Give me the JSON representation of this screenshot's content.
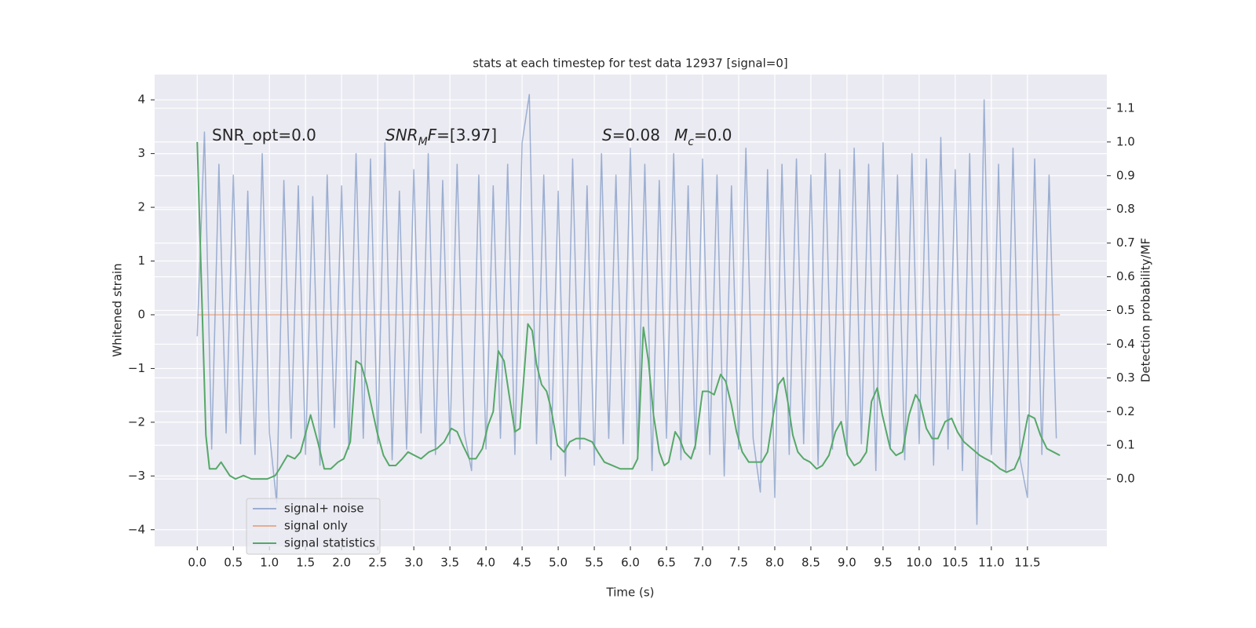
{
  "chart_data": {
    "type": "line",
    "title": "stats at each timestep for test data 12937 [signal=0]",
    "xlabel": "Time (s)",
    "ylabel": "Whitened strain",
    "y2label": "Detection probability/MF",
    "xlim": [
      -0.59,
      12.6
    ],
    "ylim": [
      -4.31,
      4.47
    ],
    "y2lim": [
      -0.2,
      1.2
    ],
    "xticks": [
      {
        "value": 0,
        "label": "0.0"
      },
      0.5,
      {
        "value": 1,
        "label": "1.0"
      },
      1.5,
      {
        "value": 2,
        "label": "2.0"
      },
      2.5,
      {
        "value": 3,
        "label": "3.0"
      },
      3.5,
      {
        "value": 4,
        "label": "4.0"
      },
      4.5,
      {
        "value": 5,
        "label": "5.0"
      },
      5.5,
      {
        "value": 6,
        "label": "6.0"
      },
      6.5,
      {
        "value": 7,
        "label": "7.0"
      },
      7.5,
      {
        "value": 8,
        "label": "8.0"
      },
      8.5,
      {
        "value": 9,
        "label": "9.0"
      },
      9.5,
      {
        "value": 10,
        "label": "10.0"
      },
      10.5,
      {
        "value": 11,
        "label": "11.0"
      },
      11.5
    ],
    "yticks": [
      {
        "value": -4,
        "label": "−4"
      },
      {
        "value": -3,
        "label": "−3"
      },
      {
        "value": -2,
        "label": "−2"
      },
      {
        "value": -1,
        "label": "−1"
      },
      0,
      1,
      2,
      3,
      4
    ],
    "y2ticks": [
      {
        "value": 0,
        "label": "0.0"
      },
      0.1,
      0.2,
      0.3,
      0.4,
      0.5,
      0.6,
      0.7,
      0.8,
      0.9,
      {
        "value": 1,
        "label": "1.0"
      },
      1.1
    ],
    "grid": true,
    "legend": "lower left",
    "annotations": [
      {
        "parts": [
          {
            "text": "SNR_opt=0.0"
          }
        ]
      },
      {
        "parts": [
          {
            "text": "SNR",
            "italic": true
          },
          {
            "text": "M",
            "italic": true,
            "sub": true
          },
          {
            "text": "F",
            "italic": true
          },
          {
            "text": "=[3.97]"
          }
        ]
      },
      {
        "parts": [
          {
            "text": "S",
            "italic": true
          },
          {
            "text": "=0.08"
          }
        ]
      },
      {
        "parts": [
          {
            "text": "M",
            "italic": true
          },
          {
            "text": "c",
            "italic": true,
            "sub": true
          },
          {
            "text": "=0.0"
          }
        ]
      }
    ],
    "series": [
      {
        "name": "signal+ noise",
        "color": "#4c72b0",
        "opacity": 0.5,
        "x": [
          0.0,
          0.1,
          0.2,
          0.3,
          0.4,
          0.5,
          0.6,
          0.7,
          0.8,
          0.9,
          1.0,
          1.1,
          1.2,
          1.3,
          1.4,
          1.5,
          1.6,
          1.7,
          1.8,
          1.9,
          2.0,
          2.1,
          2.2,
          2.3,
          2.4,
          2.5,
          2.6,
          2.7,
          2.8,
          2.9,
          3.0,
          3.1,
          3.2,
          3.3,
          3.4,
          3.5,
          3.6,
          3.7,
          3.8,
          3.9,
          4.0,
          4.1,
          4.2,
          4.3,
          4.4,
          4.5,
          4.6,
          4.7,
          4.8,
          4.9,
          5.0,
          5.1,
          5.2,
          5.3,
          5.4,
          5.5,
          5.6,
          5.7,
          5.8,
          5.9,
          6.0,
          6.1,
          6.2,
          6.3,
          6.4,
          6.5,
          6.6,
          6.7,
          6.8,
          6.9,
          7.0,
          7.1,
          7.2,
          7.3,
          7.4,
          7.5,
          7.6,
          7.7,
          7.8,
          7.9,
          8.0,
          8.1,
          8.2,
          8.3,
          8.4,
          8.5,
          8.6,
          8.7,
          8.8,
          8.9,
          9.0,
          9.1,
          9.2,
          9.3,
          9.4,
          9.5,
          9.6,
          9.7,
          9.8,
          9.9,
          10.0,
          10.1,
          10.2,
          10.3,
          10.4,
          10.5,
          10.6,
          10.7,
          10.8,
          10.9,
          11.0,
          11.1,
          11.2,
          11.3,
          11.4,
          11.5,
          11.6,
          11.7,
          11.8,
          11.9
        ],
        "values": [
          -0.4,
          3.4,
          -2.5,
          2.8,
          -2.2,
          2.6,
          -2.4,
          2.3,
          -2.6,
          3.0,
          -2.2,
          -3.5,
          2.5,
          -2.3,
          2.4,
          -2.6,
          2.2,
          -2.8,
          2.6,
          -2.1,
          2.4,
          -2.5,
          3.0,
          -2.3,
          2.9,
          -2.4,
          3.2,
          -2.7,
          2.3,
          -2.5,
          2.7,
          -2.2,
          3.0,
          -2.6,
          2.5,
          -2.4,
          2.8,
          -2.2,
          -2.9,
          2.6,
          -2.5,
          2.4,
          -2.3,
          2.8,
          -2.6,
          3.2,
          4.1,
          -2.4,
          2.6,
          -2.7,
          2.3,
          -3.0,
          2.9,
          -2.5,
          2.4,
          -2.8,
          3.0,
          -2.3,
          2.6,
          -2.4,
          3.1,
          -2.6,
          2.8,
          -2.9,
          2.5,
          -2.3,
          3.0,
          -2.7,
          2.4,
          -2.5,
          2.9,
          -2.6,
          2.6,
          -3.0,
          2.4,
          -2.5,
          3.1,
          -2.3,
          -3.3,
          2.7,
          -3.4,
          2.8,
          -2.6,
          2.9,
          -2.4,
          2.6,
          -2.8,
          3.0,
          -2.5,
          2.7,
          -2.6,
          3.1,
          -2.4,
          2.8,
          -2.9,
          3.2,
          -2.5,
          2.6,
          -2.7,
          3.0,
          -2.4,
          2.9,
          -2.8,
          3.3,
          -2.5,
          2.7,
          -2.9,
          3.0,
          -3.9,
          4.0,
          -2.6,
          2.8,
          -2.9,
          3.1,
          -2.7,
          -3.4,
          2.9,
          -2.6,
          2.6,
          -2.3
        ]
      },
      {
        "name": "signal only",
        "color": "#dd8452",
        "opacity": 0.6,
        "x": [
          0.0,
          11.95
        ],
        "values": [
          0,
          0
        ]
      },
      {
        "name": "signal statistics",
        "color": "#55a868",
        "opacity": 1,
        "axis": "y2",
        "x": [
          0,
          0.12,
          0.17,
          0.26,
          0.33,
          0.45,
          0.53,
          0.64,
          0.75,
          0.97,
          1.08,
          1.14,
          1.25,
          1.35,
          1.43,
          1.57,
          1.67,
          1.76,
          1.85,
          1.95,
          2.03,
          2.12,
          2.2,
          2.27,
          2.35,
          2.41,
          2.49,
          2.58,
          2.66,
          2.75,
          2.84,
          2.92,
          3.01,
          3.1,
          3.21,
          3.32,
          3.42,
          3.52,
          3.6,
          3.68,
          3.77,
          3.86,
          3.95,
          4.03,
          4.1,
          4.17,
          4.25,
          4.32,
          4.4,
          4.47,
          4.58,
          4.64,
          4.7,
          4.77,
          4.84,
          4.9,
          4.99,
          5.08,
          5.16,
          5.25,
          5.36,
          5.47,
          5.55,
          5.64,
          5.75,
          5.86,
          5.95,
          6.03,
          6.1,
          6.18,
          6.25,
          6.32,
          6.4,
          6.47,
          6.53,
          6.62,
          6.68,
          6.75,
          6.84,
          6.9,
          7.0,
          7.08,
          7.16,
          7.25,
          7.32,
          7.4,
          7.47,
          7.55,
          7.64,
          7.73,
          7.82,
          7.9,
          7.98,
          8.05,
          8.12,
          8.18,
          8.25,
          8.32,
          8.4,
          8.49,
          8.58,
          8.66,
          8.75,
          8.84,
          8.92,
          9.01,
          9.1,
          9.18,
          9.27,
          9.34,
          9.42,
          9.49,
          9.6,
          9.68,
          9.77,
          9.86,
          9.95,
          10.01,
          10.1,
          10.18,
          10.26,
          10.36,
          10.45,
          10.53,
          10.62,
          10.73,
          10.84,
          10.92,
          11.01,
          11.12,
          11.21,
          11.32,
          11.4,
          11.51,
          11.6,
          11.68,
          11.77,
          11.86,
          11.95
        ],
        "values": [
          1.0,
          0.13,
          0.03,
          0.03,
          0.05,
          0.01,
          0.0,
          0.01,
          0.0,
          0.0,
          0.01,
          0.03,
          0.07,
          0.06,
          0.08,
          0.19,
          0.11,
          0.03,
          0.03,
          0.05,
          0.06,
          0.11,
          0.35,
          0.34,
          0.28,
          0.22,
          0.14,
          0.07,
          0.04,
          0.04,
          0.06,
          0.08,
          0.07,
          0.06,
          0.08,
          0.09,
          0.11,
          0.15,
          0.14,
          0.1,
          0.06,
          0.06,
          0.09,
          0.16,
          0.2,
          0.38,
          0.35,
          0.25,
          0.14,
          0.15,
          0.46,
          0.44,
          0.34,
          0.28,
          0.26,
          0.21,
          0.1,
          0.08,
          0.11,
          0.12,
          0.12,
          0.11,
          0.08,
          0.05,
          0.04,
          0.03,
          0.03,
          0.03,
          0.06,
          0.45,
          0.35,
          0.19,
          0.08,
          0.04,
          0.05,
          0.14,
          0.12,
          0.08,
          0.06,
          0.1,
          0.26,
          0.26,
          0.25,
          0.31,
          0.29,
          0.22,
          0.14,
          0.08,
          0.05,
          0.05,
          0.05,
          0.08,
          0.19,
          0.28,
          0.3,
          0.23,
          0.13,
          0.08,
          0.06,
          0.05,
          0.03,
          0.04,
          0.07,
          0.14,
          0.17,
          0.07,
          0.04,
          0.05,
          0.08,
          0.23,
          0.27,
          0.19,
          0.09,
          0.07,
          0.08,
          0.19,
          0.25,
          0.23,
          0.15,
          0.12,
          0.12,
          0.17,
          0.18,
          0.14,
          0.11,
          0.09,
          0.07,
          0.06,
          0.05,
          0.03,
          0.02,
          0.03,
          0.07,
          0.19,
          0.18,
          0.13,
          0.09,
          0.08,
          0.07
        ]
      }
    ]
  }
}
